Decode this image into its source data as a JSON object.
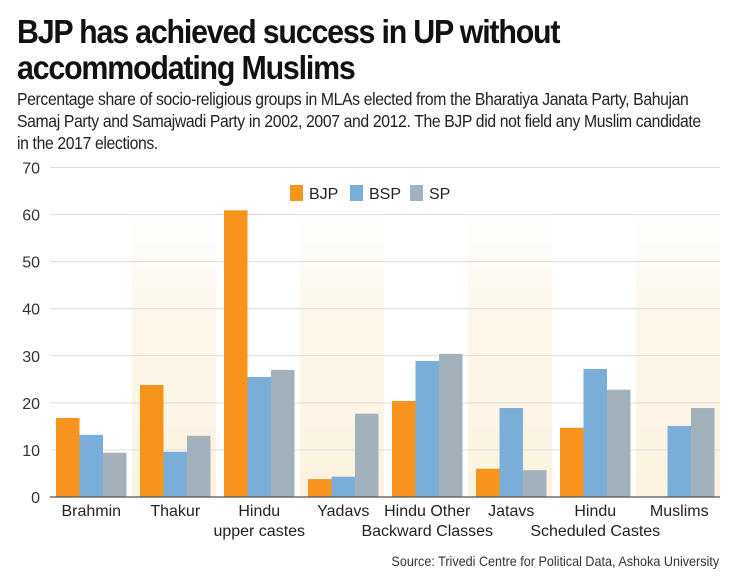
{
  "title": "BJP has achieved success in UP without accommodating Muslims",
  "subtitle": "Percentage share of socio-religious groups in MLAs elected from the Bharatiya Janata Party, Bahujan Samaj Party and Samajwadi Party in 2002, 2007 and 2012. The BJP did not field any Muslim candidate in the 2017 elections.",
  "source": "Source: Trivedi Centre for Political Data, Ashoka University",
  "chart_data": {
    "type": "bar",
    "title": "BJP has achieved success in UP without accommodating Muslims",
    "xlabel": "",
    "ylabel": "",
    "ylim": [
      0,
      70
    ],
    "yticks": [
      0,
      10,
      20,
      30,
      40,
      50,
      60,
      70
    ],
    "grid": true,
    "legend_position": "top-center",
    "categories": [
      [
        "Brahmin"
      ],
      [
        "Thakur"
      ],
      [
        "Hindu",
        "upper castes"
      ],
      [
        "Yadavs"
      ],
      [
        "Hindu Other",
        "Backward Classes"
      ],
      [
        "Jatavs"
      ],
      [
        "Hindu",
        "Scheduled Castes"
      ],
      [
        "Muslims"
      ]
    ],
    "series": [
      {
        "name": "BJP",
        "color": "#F7941E",
        "values": [
          16.8,
          23.8,
          60.9,
          3.8,
          20.4,
          6.0,
          14.7,
          0
        ]
      },
      {
        "name": "BSP",
        "color": "#7AAED8",
        "values": [
          13.2,
          9.6,
          25.5,
          4.3,
          28.9,
          18.9,
          27.2,
          15.1
        ]
      },
      {
        "name": "SP",
        "color": "#A3B1BC",
        "values": [
          9.4,
          13.0,
          27.0,
          17.7,
          30.4,
          5.7,
          22.8,
          18.9
        ]
      }
    ],
    "band_color": "#FDF6E8"
  }
}
